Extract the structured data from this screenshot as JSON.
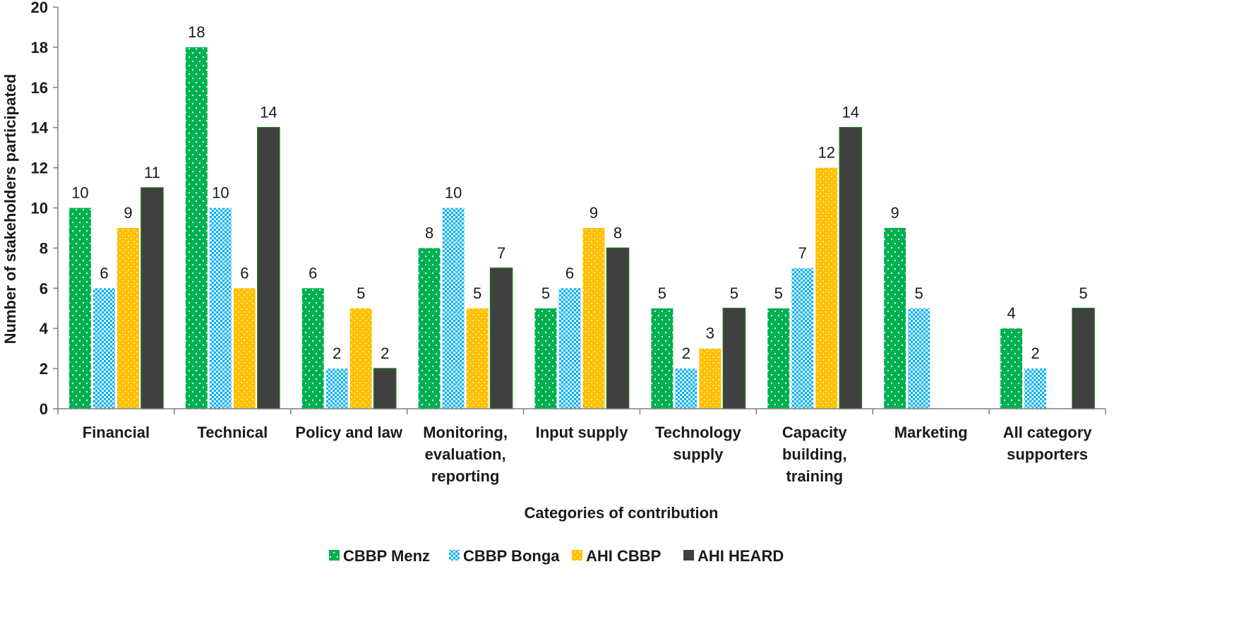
{
  "chart_data": {
    "type": "bar",
    "title": "",
    "xlabel": "Categories of contribution",
    "ylabel": "Number of stakeholders participated",
    "ylim": [
      0,
      20
    ],
    "yticks": [
      0,
      2,
      4,
      6,
      8,
      10,
      12,
      14,
      16,
      18,
      20
    ],
    "grid": false,
    "legend_position": "bottom",
    "categories": [
      [
        "Financial"
      ],
      [
        "Technical"
      ],
      [
        "Policy and law"
      ],
      [
        "Monitoring,",
        "evaluation,",
        "reporting"
      ],
      [
        "Input supply"
      ],
      [
        "Technology",
        "supply"
      ],
      [
        "Capacity",
        "building,",
        "training"
      ],
      [
        "Marketing"
      ],
      [
        "All category",
        "supporters"
      ]
    ],
    "series": [
      {
        "name": "CBBP Menz",
        "color": "#00b050",
        "pattern": "dots-green",
        "values": [
          10,
          18,
          6,
          8,
          5,
          5,
          5,
          9,
          4
        ]
      },
      {
        "name": "CBBP Bonga",
        "color": "#00b0f0",
        "pattern": "grid-blue",
        "values": [
          6,
          10,
          2,
          10,
          6,
          2,
          7,
          5,
          2
        ]
      },
      {
        "name": "AHI CBBP",
        "color": "#ffc000",
        "pattern": "dots-gold",
        "values": [
          9,
          6,
          5,
          5,
          9,
          3,
          12,
          null,
          null
        ]
      },
      {
        "name": "AHI HEARD",
        "color": "#404040",
        "pattern": "solid-dark",
        "values": [
          11,
          14,
          2,
          7,
          8,
          5,
          14,
          null,
          5
        ]
      }
    ]
  }
}
